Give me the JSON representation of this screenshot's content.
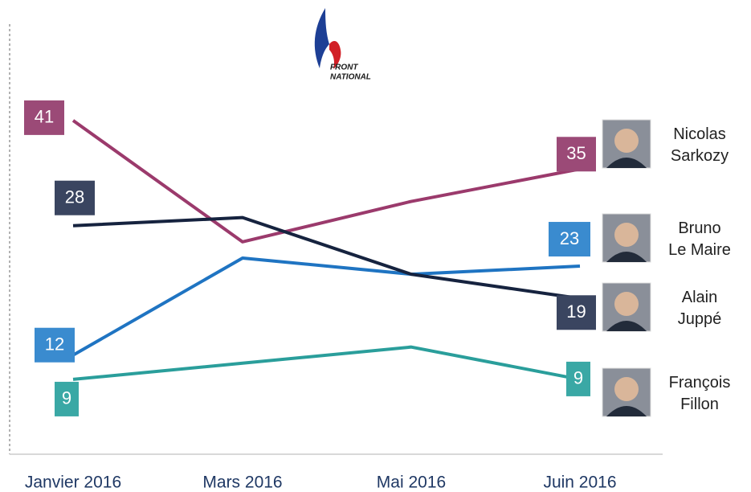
{
  "chart_data": {
    "type": "line",
    "annotations": [
      "FRONT",
      "NATIONAL"
    ],
    "categories": [
      "Janvier 2016",
      "Mars 2016",
      "Mai 2016",
      "Juin 2016"
    ],
    "series": [
      {
        "name": "Nicolas Sarkozy",
        "color": "#9b3a6c",
        "values": [
          41,
          26,
          31,
          35
        ]
      },
      {
        "name": "Bruno Le Maire",
        "color": "#1f74c2",
        "values": [
          12,
          24,
          22,
          23
        ]
      },
      {
        "name": "Alain Juppé",
        "color": "#16233f",
        "values": [
          28,
          29,
          22,
          19
        ]
      },
      {
        "name": "François Fillon",
        "color": "#2a9e9b",
        "values": [
          9,
          11,
          13,
          9
        ]
      }
    ],
    "label_colors": [
      "#9b4a77",
      "#3a8bcf",
      "#3a4560",
      "#3aa8a5"
    ],
    "ylim": [
      0,
      55
    ]
  }
}
